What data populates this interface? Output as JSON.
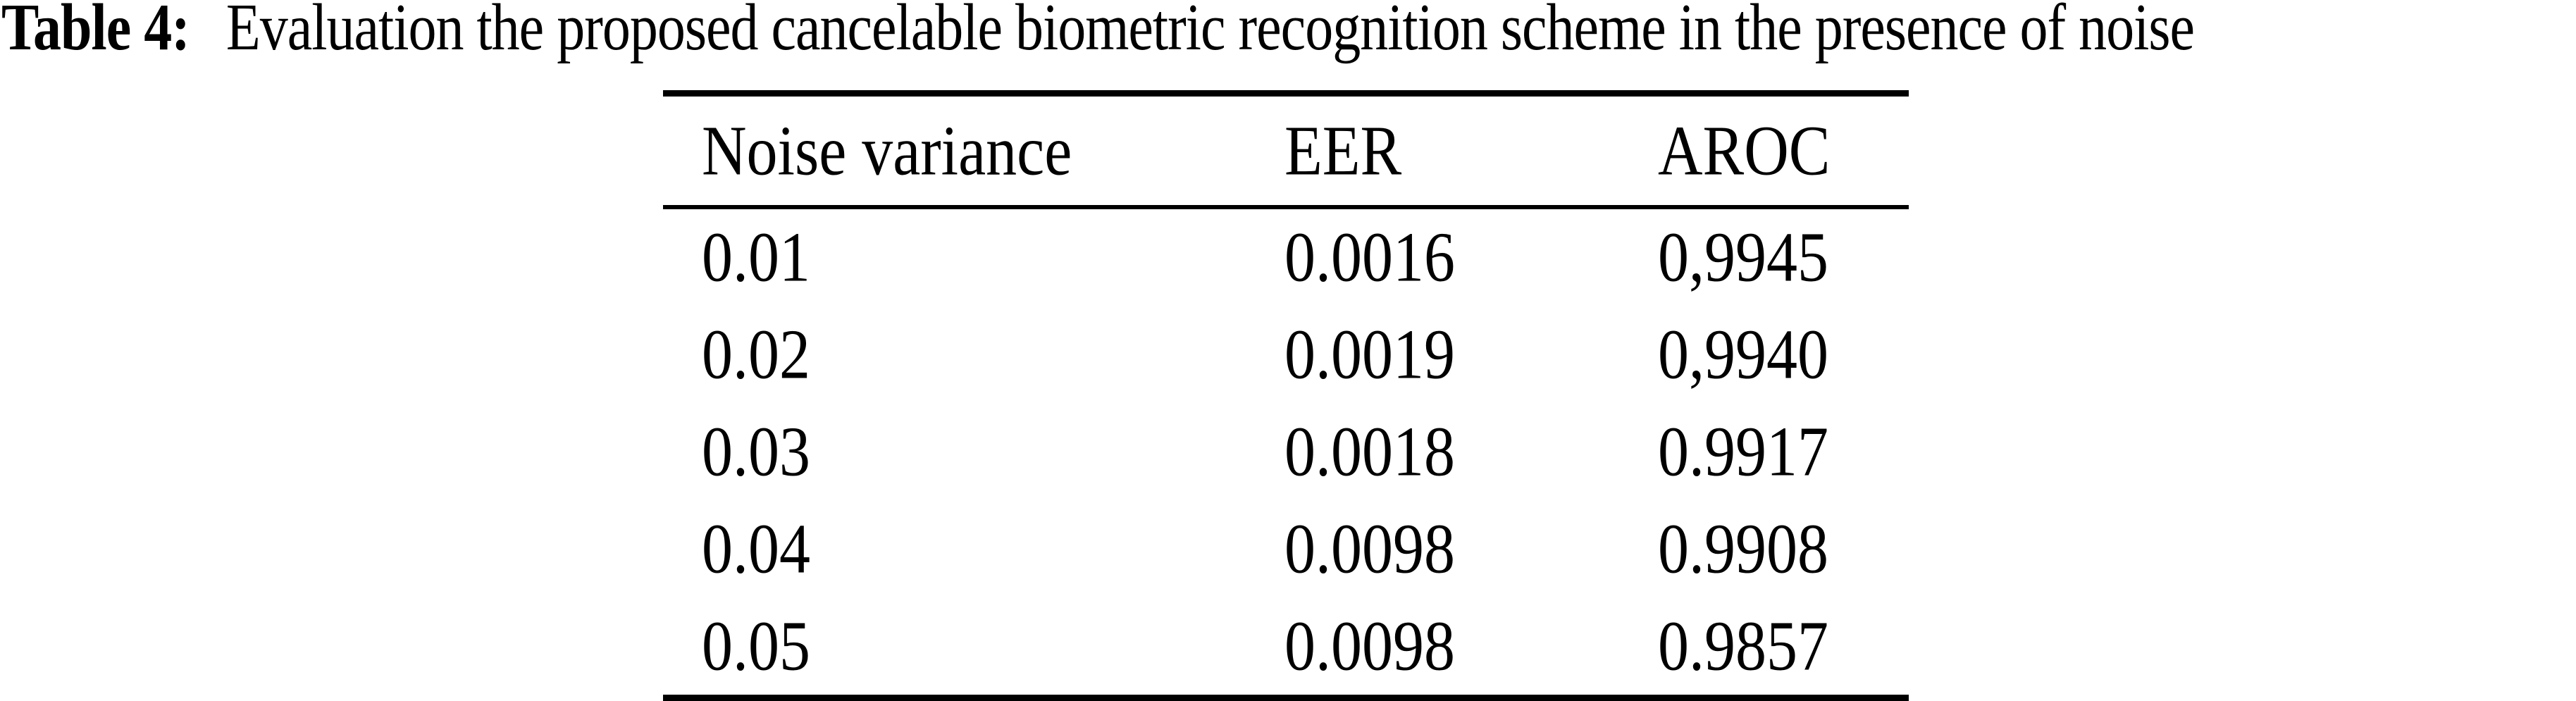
{
  "caption": {
    "label": "Table 4:",
    "text": "Evaluation the proposed cancelable biometric recognition scheme in the presence of noise"
  },
  "table": {
    "headers": [
      "Noise variance",
      "EER",
      "AROC"
    ],
    "rows": [
      {
        "noise": "0.01",
        "eer": "0.0016",
        "aroc": "0,9945"
      },
      {
        "noise": "0.02",
        "eer": "0.0019",
        "aroc": "0,9940"
      },
      {
        "noise": "0.03",
        "eer": "0.0018",
        "aroc": "0.9917"
      },
      {
        "noise": "0.04",
        "eer": "0.0098",
        "aroc": "0.9908"
      },
      {
        "noise": "0.05",
        "eer": "0.0098",
        "aroc": "0.9857"
      }
    ]
  },
  "colors": {
    "background": "#ffffff",
    "text": "#000000",
    "rule": "#000000"
  },
  "chart_data": {
    "type": "table",
    "title": "Table 4: Evaluation the proposed cancelable biometric recognition scheme in the presence of noise",
    "columns": [
      "Noise variance",
      "EER",
      "AROC"
    ],
    "rows": [
      [
        "0.01",
        "0.0016",
        "0,9945"
      ],
      [
        "0.02",
        "0.0019",
        "0,9940"
      ],
      [
        "0.03",
        "0.0018",
        "0.9917"
      ],
      [
        "0.04",
        "0.0098",
        "0.9908"
      ],
      [
        "0.05",
        "0.0098",
        "0.9857"
      ]
    ]
  }
}
